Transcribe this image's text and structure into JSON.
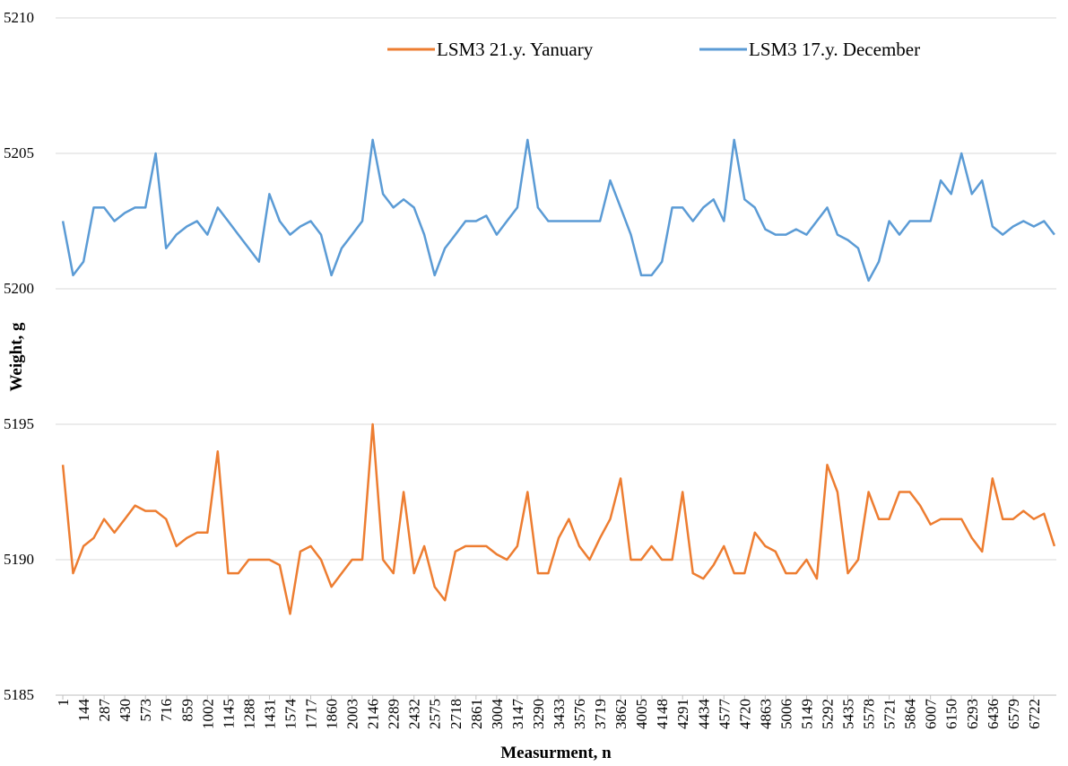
{
  "chart_data": {
    "type": "line",
    "x_label": "Measurment, n",
    "y_label": "Weight, g",
    "x": [
      1,
      72,
      144,
      215,
      287,
      358,
      430,
      501,
      573,
      644,
      716,
      787,
      859,
      930,
      1002,
      1073,
      1145,
      1216,
      1288,
      1359,
      1431,
      1502,
      1574,
      1645,
      1717,
      1788,
      1860,
      1931,
      2003,
      2074,
      2146,
      2217,
      2289,
      2360,
      2432,
      2503,
      2575,
      2646,
      2718,
      2789,
      2861,
      2932,
      3004,
      3075,
      3147,
      3218,
      3290,
      3361,
      3433,
      3504,
      3576,
      3647,
      3719,
      3790,
      3862,
      3933,
      4005,
      4076,
      4148,
      4219,
      4291,
      4362,
      4434,
      4505,
      4577,
      4648,
      4720,
      4791,
      4863,
      4934,
      5006,
      5077,
      5149,
      5220,
      5292,
      5363,
      5435,
      5506,
      5578,
      5649,
      5721,
      5792,
      5864,
      5935,
      6007,
      6078,
      6150,
      6221,
      6293,
      6364,
      6436,
      6507,
      6579,
      6650,
      6722,
      6793,
      6865
    ],
    "series": [
      {
        "name": "LSM3 21.y. Yanuary",
        "color": "#ed7d31",
        "values": [
          5193.5,
          5189.5,
          5190.5,
          5190.8,
          5191.5,
          5191,
          5191.5,
          5192,
          5191.8,
          5191.8,
          5191.5,
          5190.5,
          5190.8,
          5191,
          5191,
          5194,
          5189.5,
          5189.5,
          5190,
          5190,
          5190,
          5189.8,
          5188,
          5190.3,
          5190.5,
          5190,
          5189,
          5189.5,
          5190,
          5190,
          5195,
          5190,
          5189.5,
          5192.5,
          5189.5,
          5190.5,
          5189,
          5188.5,
          5190.3,
          5190.5,
          5190.5,
          5190.5,
          5190.2,
          5190,
          5190.5,
          5192.5,
          5189.5,
          5189.5,
          5190.8,
          5191.5,
          5190.5,
          5190,
          5190.8,
          5191.5,
          5193,
          5190,
          5190,
          5190.5,
          5190,
          5190,
          5192.5,
          5189.5,
          5189.3,
          5189.8,
          5190.5,
          5189.5,
          5189.5,
          5191,
          5190.5,
          5190.3,
          5189.5,
          5189.5,
          5190,
          5189.3,
          5193.5,
          5192.5,
          5189.5,
          5190,
          5192.5,
          5191.5,
          5191.5,
          5192.5,
          5192.5,
          5192,
          5191.3,
          5191.5,
          5191.5,
          5191.5,
          5190.8,
          5190.3,
          5193,
          5191.5,
          5191.5,
          5191.8,
          5191.5,
          5191.7,
          5190.5
        ]
      },
      {
        "name": "LSM3 17.y. December",
        "color": "#5b9bd5",
        "values": [
          5202.5,
          5200.5,
          5201,
          5203,
          5203,
          5202.5,
          5202.8,
          5203,
          5203,
          5205,
          5201.5,
          5202,
          5202.3,
          5202.5,
          5202,
          5203,
          5202.5,
          5202,
          5201.5,
          5201,
          5203.5,
          5202.5,
          5202,
          5202.3,
          5202.5,
          5202,
          5200.5,
          5201.5,
          5202,
          5202.5,
          5205.5,
          5203.5,
          5203,
          5203.3,
          5203,
          5202,
          5200.5,
          5201.5,
          5202,
          5202.5,
          5202.5,
          5202.7,
          5202,
          5202.5,
          5203,
          5205.5,
          5203,
          5202.5,
          5202.5,
          5202.5,
          5202.5,
          5202.5,
          5202.5,
          5204,
          5203,
          5202,
          5200.5,
          5200.5,
          5201,
          5203,
          5203,
          5202.5,
          5203,
          5203.3,
          5202.5,
          5205.5,
          5203.3,
          5203,
          5202.2,
          5202,
          5202,
          5202.2,
          5202,
          5202.5,
          5203,
          5202,
          5201.8,
          5201.5,
          5200.3,
          5201,
          5202.5,
          5202,
          5202.5,
          5202.5,
          5202.5,
          5204,
          5203.5,
          5205,
          5203.5,
          5204,
          5202.3,
          5202,
          5202.3,
          5202.5,
          5202.3,
          5202.5,
          5202
        ]
      }
    ],
    "xlim": [
      -49,
      6878
    ],
    "xticks": [
      1,
      144,
      287,
      430,
      573,
      716,
      859,
      1002,
      1145,
      1288,
      1431,
      1574,
      1717,
      1860,
      2003,
      2146,
      2289,
      2432,
      2575,
      2718,
      2861,
      3004,
      3147,
      3290,
      3433,
      3576,
      3719,
      3862,
      4005,
      4148,
      4291,
      4434,
      4577,
      4720,
      4863,
      5006,
      5149,
      5292,
      5435,
      5578,
      5721,
      5864,
      6007,
      6150,
      6293,
      6436,
      6579,
      6722
    ],
    "ylim": [
      5185,
      5210
    ],
    "yticks": [
      5185,
      5190,
      5195,
      5200,
      5205,
      5210
    ],
    "grid": true,
    "legend": "top"
  }
}
